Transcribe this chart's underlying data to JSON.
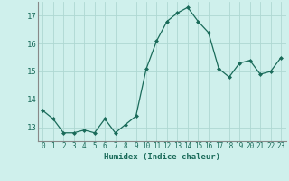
{
  "x": [
    0,
    1,
    2,
    3,
    4,
    5,
    6,
    7,
    8,
    9,
    10,
    11,
    12,
    13,
    14,
    15,
    16,
    17,
    18,
    19,
    20,
    21,
    22,
    23
  ],
  "y": [
    13.6,
    13.3,
    12.8,
    12.8,
    12.9,
    12.8,
    13.3,
    12.8,
    13.1,
    13.4,
    15.1,
    16.1,
    16.8,
    17.1,
    17.3,
    16.8,
    16.4,
    15.1,
    14.8,
    15.3,
    15.4,
    14.9,
    15.0,
    15.5
  ],
  "line_color": "#1a6b5a",
  "marker": "D",
  "marker_size": 2.0,
  "bg_color": "#cff0ec",
  "grid_color": "#aed8d2",
  "xlabel": "Humidex (Indice chaleur)",
  "ylim": [
    12.5,
    17.5
  ],
  "xlim": [
    -0.5,
    23.5
  ],
  "yticks": [
    13,
    14,
    15,
    16,
    17
  ],
  "xticks": [
    0,
    1,
    2,
    3,
    4,
    5,
    6,
    7,
    8,
    9,
    10,
    11,
    12,
    13,
    14,
    15,
    16,
    17,
    18,
    19,
    20,
    21,
    22,
    23
  ],
  "tick_fontsize": 5.5,
  "xlabel_fontsize": 6.5
}
